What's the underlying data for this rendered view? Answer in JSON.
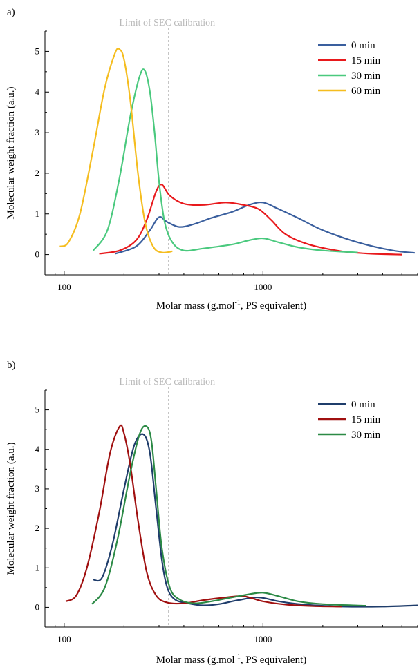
{
  "chart_data": [
    {
      "type": "line",
      "panel_label": "a)",
      "xlabel": "Molar mass (g.mol-1, PS equivalent)",
      "xlabel_main": "Molar mass (g.mol",
      "xlabel_sup": "-1",
      "xlabel_tail": ", PS equivalent)",
      "ylabel": "Molecular weight fraction (a.u.)",
      "xscale": "log",
      "xlim": [
        80,
        6000
      ],
      "ylim": [
        -0.5,
        5.5
      ],
      "x_ticks": [
        100,
        1000
      ],
      "y_ticks": [
        0,
        1,
        2,
        3,
        4,
        5
      ],
      "legend_position": "top-right",
      "limit_line": {
        "x": 335,
        "label": "Limit of SEC calibration",
        "color": "#b8b8b8"
      },
      "series": [
        {
          "name": "0 min",
          "color": "#3a5f9e",
          "x": [
            180,
            230,
            270,
            300,
            330,
            380,
            450,
            550,
            700,
            850,
            1000,
            1200,
            1500,
            2000,
            3000,
            4500,
            5800
          ],
          "y": [
            0.02,
            0.2,
            0.6,
            0.92,
            0.8,
            0.68,
            0.75,
            0.9,
            1.05,
            1.22,
            1.28,
            1.12,
            0.9,
            0.6,
            0.3,
            0.1,
            0.04
          ]
        },
        {
          "name": "15 min",
          "color": "#e8191c",
          "x": [
            150,
            190,
            230,
            260,
            290,
            310,
            340,
            400,
            500,
            650,
            800,
            950,
            1100,
            1300,
            1700,
            2500,
            3500,
            5000
          ],
          "y": [
            0.02,
            0.1,
            0.35,
            0.85,
            1.55,
            1.72,
            1.45,
            1.25,
            1.22,
            1.28,
            1.22,
            1.12,
            0.85,
            0.5,
            0.25,
            0.08,
            0.02,
            0.0
          ]
        },
        {
          "name": "30 min",
          "color": "#4ac97e",
          "x": [
            140,
            165,
            190,
            215,
            240,
            255,
            270,
            285,
            300,
            320,
            350,
            400,
            500,
            700,
            850,
            1000,
            1200,
            1500,
            2000,
            3000
          ],
          "y": [
            0.1,
            0.6,
            1.9,
            3.4,
            4.4,
            4.52,
            4.0,
            3.0,
            1.8,
            0.8,
            0.3,
            0.1,
            0.15,
            0.25,
            0.35,
            0.4,
            0.3,
            0.18,
            0.1,
            0.05
          ]
        },
        {
          "name": "60 min",
          "color": "#f5bd1f",
          "x": [
            95,
            105,
            120,
            140,
            160,
            180,
            190,
            200,
            215,
            235,
            255,
            280,
            310,
            350
          ],
          "y": [
            0.2,
            0.3,
            1.0,
            2.6,
            4.1,
            4.95,
            5.05,
            4.8,
            3.8,
            2.0,
            0.8,
            0.2,
            0.05,
            0.08
          ]
        }
      ]
    },
    {
      "type": "line",
      "panel_label": "b)",
      "xlabel": "Molar mass (g.mol-1, PS equivalent)",
      "xlabel_main": "Molar mass (g.mol",
      "xlabel_sup": "-1",
      "xlabel_tail": ", PS equivalent)",
      "ylabel": "Molecular weight fraction (a.u.)",
      "xscale": "log",
      "xlim": [
        80,
        6000
      ],
      "ylim": [
        -0.5,
        5.5
      ],
      "x_ticks": [
        100,
        1000
      ],
      "y_ticks": [
        0,
        1,
        2,
        3,
        4,
        5
      ],
      "legend_position": "top-right",
      "limit_line": {
        "x": 335,
        "label": "Limit of SEC calibration",
        "color": "#b8b8b8"
      },
      "series": [
        {
          "name": "0 min",
          "color": "#1f3d6b",
          "x": [
            140,
            155,
            175,
            200,
            225,
            250,
            270,
            290,
            310,
            330,
            360,
            420,
            500,
            600,
            750,
            950,
            1200,
            1600,
            2500,
            4000,
            6000
          ],
          "y": [
            0.7,
            0.75,
            1.6,
            3.0,
            4.1,
            4.38,
            3.9,
            2.5,
            1.2,
            0.5,
            0.2,
            0.1,
            0.05,
            0.08,
            0.18,
            0.25,
            0.15,
            0.07,
            0.02,
            0.02,
            0.05
          ]
        },
        {
          "name": "15 min",
          "color": "#a01010",
          "x": [
            102,
            115,
            130,
            150,
            170,
            190,
            200,
            215,
            235,
            260,
            290,
            330,
            400,
            500,
            650,
            800,
            1000,
            1300,
            1800,
            2500
          ],
          "y": [
            0.15,
            0.3,
            1.0,
            2.4,
            3.9,
            4.58,
            4.4,
            3.6,
            2.2,
            0.9,
            0.3,
            0.12,
            0.1,
            0.18,
            0.25,
            0.28,
            0.15,
            0.07,
            0.03,
            0.02
          ]
        },
        {
          "name": "30 min",
          "color": "#2c8a46",
          "x": [
            138,
            160,
            185,
            215,
            240,
            260,
            275,
            290,
            310,
            340,
            380,
            450,
            550,
            700,
            850,
            1000,
            1200,
            1500,
            2000,
            3300
          ],
          "y": [
            0.08,
            0.5,
            1.7,
            3.4,
            4.4,
            4.58,
            4.2,
            3.0,
            1.5,
            0.5,
            0.2,
            0.1,
            0.15,
            0.25,
            0.33,
            0.37,
            0.28,
            0.15,
            0.08,
            0.04
          ]
        }
      ]
    }
  ]
}
